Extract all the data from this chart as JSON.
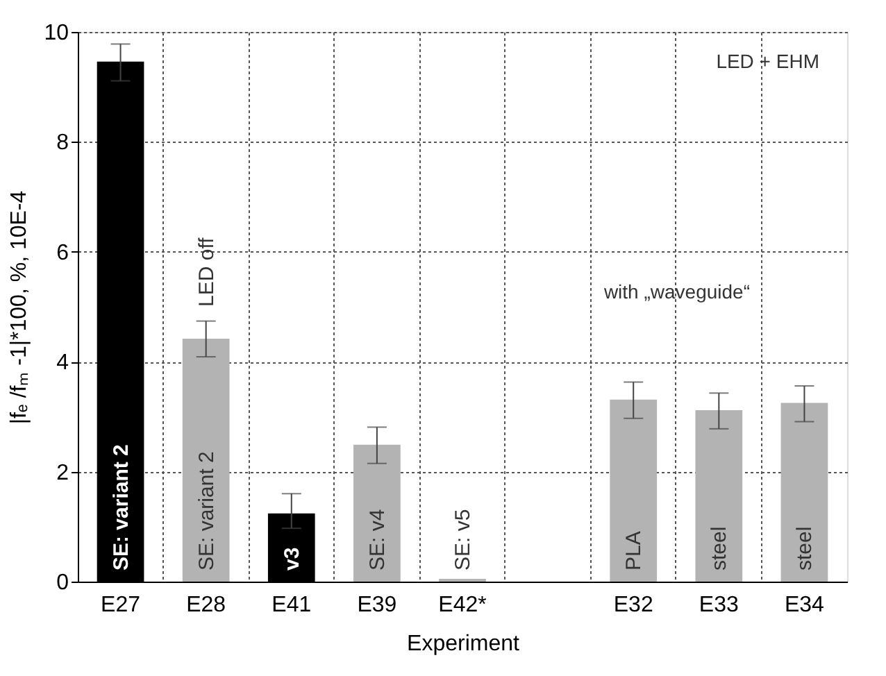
{
  "chart_data": {
    "type": "bar",
    "xlabel": "Experiment",
    "ylabel": "|fₑ /fₘ -1|*100, %, 10E-4",
    "categories": [
      "E27",
      "E28",
      "E41",
      "E39",
      "E42*",
      null,
      "E32",
      "E33",
      "E34"
    ],
    "values": [
      9.46,
      4.42,
      1.24,
      2.49,
      0.05,
      null,
      3.31,
      3.12,
      3.25
    ],
    "colors": [
      "#000000",
      "#b3b3b3",
      "#000000",
      "#b3b3b3",
      "#b3b3b3",
      "#b3b3b3",
      "#b3b3b3",
      "#b3b3b3",
      "#b3b3b3"
    ],
    "errors": [
      [
        9.11,
        9.78
      ],
      [
        4.09,
        4.74
      ],
      [
        0.97,
        1.6
      ],
      [
        2.15,
        2.81
      ],
      null,
      null,
      [
        2.97,
        3.63
      ],
      [
        2.78,
        3.43
      ],
      [
        2.91,
        3.56
      ]
    ],
    "ylim": [
      0,
      10
    ],
    "yticks": [
      0,
      2,
      4,
      6,
      8,
      10
    ],
    "grid": true,
    "annotations": [
      "SE: variant 2",
      "SE: variant 2",
      "LED off",
      "v3",
      "SE: v4",
      "SE: v5",
      "PLA",
      "steel",
      "steel",
      "LED + EHM",
      "with „waveguide“"
    ]
  }
}
